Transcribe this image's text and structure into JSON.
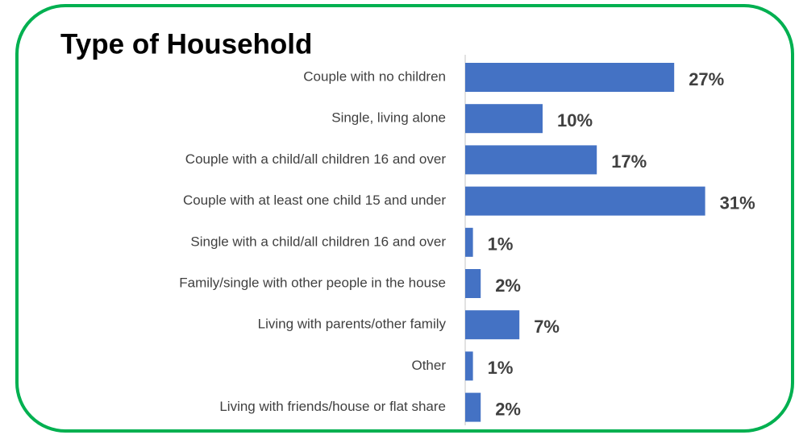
{
  "chart_data": {
    "type": "hbar",
    "title": "Type of Household",
    "categories": [
      "Couple with no children",
      "Single, living alone",
      "Couple with a child/all children 16 and over",
      "Couple with at least one child 15 and under",
      "Single with a child/all children 16 and over",
      "Family/single with other people in the house",
      "Living with parents/other family",
      "Other",
      "Living with friends/house or flat share"
    ],
    "values": [
      27,
      10,
      17,
      31,
      1,
      2,
      7,
      1,
      2
    ],
    "value_labels": [
      "27%",
      "10%",
      "17%",
      "31%",
      "1%",
      "2%",
      "7%",
      "1%",
      "2%"
    ],
    "color": "#4472c4"
  }
}
